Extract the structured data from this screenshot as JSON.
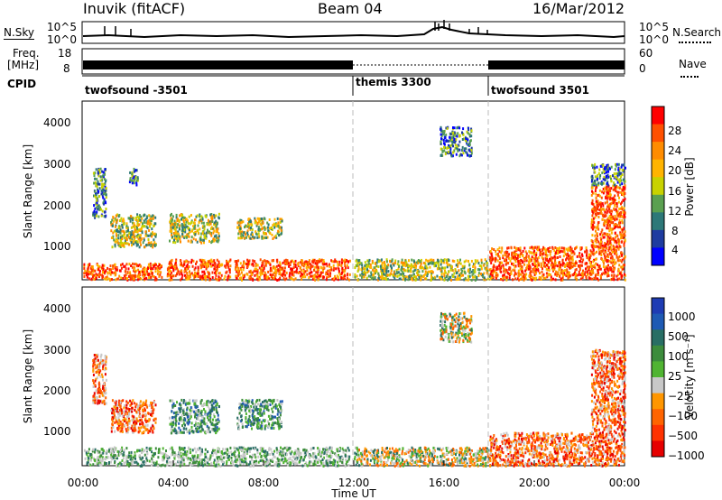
{
  "header": {
    "station": "Inuvik (fitACF)",
    "beam": "Beam 04",
    "date": "16/Mar/2012"
  },
  "noise_panel": {
    "left_label": "N.Sky",
    "right_label": "N.Search",
    "left_ticks": [
      "10^5",
      "10^0"
    ],
    "right_ticks": [
      "10^5",
      "10^0"
    ]
  },
  "freq_panel": {
    "left_label_top": "Freq.",
    "left_label_unit": "[MHz]",
    "right_label": "Nave",
    "left_ticks": [
      "18",
      "8"
    ],
    "right_ticks": [
      "60",
      "0"
    ]
  },
  "cpid_panel": {
    "label": "CPID",
    "segments": [
      "twofsound -3501",
      "themis 3300",
      "twofsound 3501"
    ]
  },
  "power_panel": {
    "ylabel": "Slant Range [km]",
    "colorbar_label": "Power [dB]",
    "colorbar_ticks": [
      "28",
      "24",
      "20",
      "16",
      "12",
      "8",
      "4"
    ],
    "colorbar_colors": [
      "#ff0000",
      "#ff5000",
      "#ff8c00",
      "#ffb400",
      "#c8d200",
      "#5aa050",
      "#2d7878",
      "#1e3ca0",
      "#0000ff"
    ]
  },
  "velocity_panel": {
    "ylabel": "Slant Range [km]",
    "colorbar_label": "Velocity [m s⁻¹]",
    "colorbar_ticks": [
      "1000",
      "500",
      "100",
      "25",
      "−25",
      "−100",
      "−500",
      "−1000"
    ],
    "colorbar_colors": [
      "#1e3cb4",
      "#1e5ab4",
      "#286e64",
      "#3c8c3c",
      "#50b432",
      "#c8c8c8",
      "#ff9600",
      "#ff6400",
      "#ff3200",
      "#e60000"
    ]
  },
  "x_axis": {
    "label": "Time UT",
    "ticks": [
      "00:00",
      "04:00",
      "08:00",
      "12:00",
      "16:00",
      "20:00",
      "00:00"
    ]
  },
  "chart_data": [
    {
      "type": "heatmap",
      "title": "Power",
      "xlabel": "Time UT",
      "ylabel": "Slant Range [km]",
      "xlim": [
        0,
        24
      ],
      "ylim": [
        180,
        4500
      ],
      "yticks": [
        1000,
        2000,
        3000,
        4000
      ],
      "zlabel": "Power [dB]",
      "zticks": [
        4,
        8,
        12,
        16,
        20,
        24,
        28
      ],
      "regions": [
        {
          "x": [
            0.0,
            3.5
          ],
          "y": [
            200,
            600
          ],
          "level": "high"
        },
        {
          "x": [
            3.7,
            6.5
          ],
          "y": [
            200,
            700
          ],
          "level": "high"
        },
        {
          "x": [
            6.7,
            11.8
          ],
          "y": [
            200,
            700
          ],
          "level": "high"
        },
        {
          "x": [
            1.2,
            3.2
          ],
          "y": [
            1000,
            1800
          ],
          "level": "medium"
        },
        {
          "x": [
            3.8,
            6.0
          ],
          "y": [
            1100,
            1800
          ],
          "level": "medium"
        },
        {
          "x": [
            6.8,
            8.8
          ],
          "y": [
            1200,
            1700
          ],
          "level": "medium"
        },
        {
          "x": [
            0.4,
            1.0
          ],
          "y": [
            1700,
            2900
          ],
          "level": "low"
        },
        {
          "x": [
            2.0,
            2.4
          ],
          "y": [
            2500,
            2900
          ],
          "level": "low"
        },
        {
          "x": [
            12.0,
            18.0
          ],
          "y": [
            200,
            700
          ],
          "level": "medium"
        },
        {
          "x": [
            15.8,
            17.2
          ],
          "y": [
            3200,
            3900
          ],
          "level": "low"
        },
        {
          "x": [
            18.0,
            24.0
          ],
          "y": [
            200,
            1000
          ],
          "level": "high"
        },
        {
          "x": [
            22.5,
            24.0
          ],
          "y": [
            1000,
            2500
          ],
          "level": "high"
        },
        {
          "x": [
            22.5,
            24.0
          ],
          "y": [
            2500,
            3000
          ],
          "level": "low"
        }
      ]
    },
    {
      "type": "heatmap",
      "title": "Velocity",
      "xlabel": "Time UT",
      "ylabel": "Slant Range [km]",
      "xlim": [
        0,
        24
      ],
      "ylim": [
        180,
        4500
      ],
      "yticks": [
        1000,
        2000,
        3000,
        4000
      ],
      "zlabel": "Velocity [m s⁻¹]",
      "zticks": [
        -1000,
        -500,
        -100,
        -25,
        25,
        100,
        500,
        1000
      ],
      "regions": [
        {
          "x": [
            0.0,
            11.8
          ],
          "y": [
            200,
            650
          ],
          "level": "near-zero"
        },
        {
          "x": [
            1.2,
            3.2
          ],
          "y": [
            1000,
            1800
          ],
          "level": "negative"
        },
        {
          "x": [
            3.8,
            6.0
          ],
          "y": [
            1000,
            1800
          ],
          "level": "positive"
        },
        {
          "x": [
            6.8,
            8.8
          ],
          "y": [
            1100,
            1800
          ],
          "level": "positive"
        },
        {
          "x": [
            0.4,
            1.0
          ],
          "y": [
            1700,
            2900
          ],
          "level": "negative"
        },
        {
          "x": [
            12.0,
            18.0
          ],
          "y": [
            200,
            650
          ],
          "level": "mixed"
        },
        {
          "x": [
            15.8,
            17.2
          ],
          "y": [
            3200,
            3900
          ],
          "level": "mixed"
        },
        {
          "x": [
            18.0,
            24.0
          ],
          "y": [
            200,
            1000
          ],
          "level": "negative"
        },
        {
          "x": [
            22.5,
            24.0
          ],
          "y": [
            1000,
            3000
          ],
          "level": "negative"
        }
      ]
    }
  ]
}
